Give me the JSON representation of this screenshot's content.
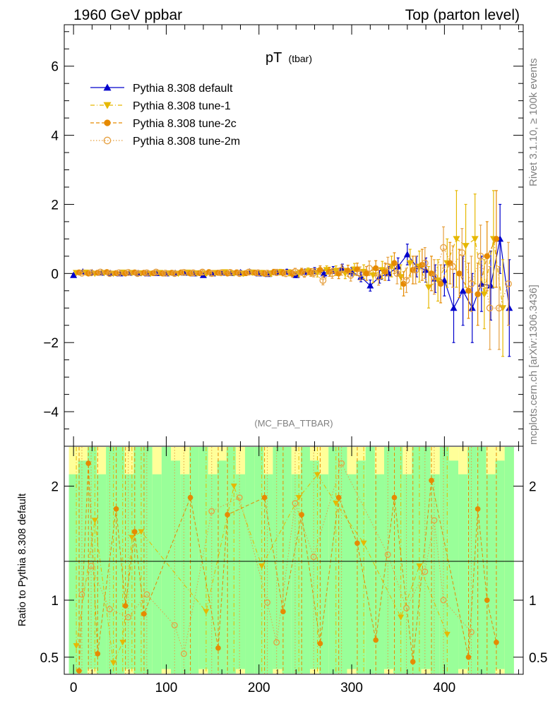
{
  "header": {
    "left": "1960 GeV ppbar",
    "right": "Top (parton level)"
  },
  "side_labels": {
    "rivet": "Rivet 3.1.10, ≥ 100k events",
    "mcplots": "mcplots.cern.ch [arXiv:1306.3436]"
  },
  "chart_data": [
    {
      "type": "line",
      "title": "pT",
      "title_sub": "(tbar)",
      "watermark": "(MC_FBA_TTBAR)",
      "ylim": [
        -5,
        7.2
      ],
      "xlim": [
        -10,
        485
      ],
      "yticks": [
        -4,
        -2,
        0,
        2,
        4,
        6
      ],
      "ytick_labels": [
        "−4",
        "−2",
        "0",
        "2",
        "4",
        "6"
      ],
      "legend_position": "top-left",
      "colors": {
        "default": "#0000cc",
        "tune-1": "#e6b800",
        "tune-2c": "#e68a00",
        "tune-2m": "#e6a040"
      },
      "series": [
        {
          "name": "Pythia 8.308 default",
          "marker": "triangle-up",
          "style": "solid",
          "x": [
            0,
            10,
            20,
            30,
            40,
            50,
            60,
            70,
            80,
            90,
            100,
            110,
            120,
            130,
            140,
            150,
            160,
            170,
            180,
            190,
            200,
            210,
            220,
            230,
            240,
            250,
            260,
            270,
            280,
            290,
            300,
            310,
            320,
            330,
            340,
            350,
            360,
            370,
            380,
            390,
            400,
            410,
            420,
            430,
            440,
            450,
            460,
            470
          ],
          "y": [
            -0.05,
            0.05,
            0.03,
            0.02,
            0.01,
            0.0,
            0.02,
            0.01,
            0.0,
            0.01,
            0.0,
            0.01,
            0.02,
            0.0,
            -0.05,
            0.0,
            0.02,
            0.01,
            0.03,
            0.05,
            0.0,
            -0.02,
            0.03,
            0.05,
            -0.05,
            0.05,
            0.08,
            0.0,
            0.1,
            0.15,
            0.05,
            -0.1,
            -0.35,
            -0.1,
            0.0,
            0.2,
            0.55,
            0.2,
            0.1,
            -0.15,
            -0.2,
            -1.0,
            -0.5,
            -1.0,
            -0.3,
            -0.35,
            1.0,
            -1.0
          ],
          "err": [
            0.04,
            0.04,
            0.04,
            0.04,
            0.04,
            0.04,
            0.04,
            0.04,
            0.04,
            0.04,
            0.04,
            0.04,
            0.05,
            0.05,
            0.05,
            0.05,
            0.05,
            0.05,
            0.06,
            0.06,
            0.06,
            0.06,
            0.07,
            0.07,
            0.07,
            0.08,
            0.09,
            0.1,
            0.1,
            0.12,
            0.12,
            0.14,
            0.16,
            0.18,
            0.2,
            0.25,
            0.3,
            0.3,
            0.35,
            0.4,
            0.45,
            1.0,
            1.0,
            1.0,
            0.8,
            1.0,
            1.0,
            1.4
          ]
        },
        {
          "name": "Pythia 8.308 tune-1",
          "marker": "triangle-down",
          "style": "dashdot",
          "x": [
            3,
            13,
            23,
            33,
            43,
            53,
            63,
            73,
            83,
            93,
            103,
            113,
            123,
            133,
            143,
            153,
            163,
            173,
            183,
            193,
            203,
            213,
            223,
            233,
            243,
            253,
            263,
            273,
            283,
            293,
            303,
            313,
            323,
            333,
            343,
            353,
            363,
            373,
            383,
            393,
            403,
            413,
            423,
            433,
            443,
            453,
            463
          ],
          "y": [
            0.02,
            0.03,
            0.0,
            0.02,
            0.0,
            0.03,
            0.02,
            0.01,
            0.0,
            0.02,
            0.01,
            0.0,
            0.03,
            0.01,
            0.0,
            0.02,
            0.04,
            0.01,
            0.0,
            0.03,
            0.02,
            0.0,
            0.04,
            0.02,
            0.0,
            0.06,
            0.02,
            0.1,
            0.08,
            0.0,
            0.12,
            0.05,
            -0.05,
            0.1,
            0.2,
            -0.1,
            0.3,
            0.2,
            -0.4,
            -0.2,
            0.3,
            1.0,
            0.8,
            1.0,
            -0.6,
            1.0,
            -1.0
          ],
          "err": [
            0.04,
            0.04,
            0.04,
            0.04,
            0.04,
            0.04,
            0.04,
            0.05,
            0.05,
            0.05,
            0.05,
            0.05,
            0.05,
            0.05,
            0.06,
            0.06,
            0.06,
            0.06,
            0.07,
            0.07,
            0.07,
            0.08,
            0.08,
            0.09,
            0.1,
            0.1,
            0.12,
            0.12,
            0.14,
            0.15,
            0.17,
            0.2,
            0.22,
            0.25,
            0.3,
            0.35,
            0.4,
            0.45,
            0.6,
            0.6,
            0.7,
            1.4,
            1.2,
            1.3,
            1.0,
            1.4,
            1.4
          ]
        },
        {
          "name": "Pythia 8.308 tune-2c",
          "marker": "circle",
          "style": "dashed",
          "x": [
            6,
            16,
            26,
            36,
            46,
            56,
            66,
            76,
            86,
            96,
            106,
            116,
            126,
            136,
            146,
            156,
            166,
            176,
            186,
            196,
            206,
            216,
            226,
            236,
            246,
            256,
            266,
            276,
            286,
            296,
            306,
            316,
            326,
            336,
            346,
            356,
            366,
            376,
            386,
            396,
            406,
            416,
            426,
            436,
            446,
            456
          ],
          "y": [
            0.03,
            0.0,
            0.02,
            0.04,
            0.01,
            0.0,
            0.03,
            0.02,
            0.01,
            0.0,
            0.02,
            0.03,
            0.0,
            0.01,
            0.04,
            0.02,
            0.0,
            0.03,
            0.01,
            0.02,
            0.0,
            0.04,
            0.02,
            0.0,
            0.05,
            0.03,
            0.1,
            0.05,
            0.0,
            0.08,
            0.12,
            0.0,
            0.15,
            0.05,
            0.3,
            -0.3,
            0.1,
            0.25,
            0.0,
            -0.3,
            0.3,
            0.0,
            -0.5,
            -0.6,
            0.5,
            1.0
          ],
          "err": [
            0.04,
            0.04,
            0.04,
            0.04,
            0.04,
            0.04,
            0.05,
            0.05,
            0.05,
            0.05,
            0.05,
            0.05,
            0.05,
            0.06,
            0.06,
            0.06,
            0.06,
            0.07,
            0.07,
            0.07,
            0.08,
            0.08,
            0.09,
            0.1,
            0.1,
            0.11,
            0.12,
            0.13,
            0.15,
            0.16,
            0.18,
            0.2,
            0.22,
            0.25,
            0.3,
            0.35,
            0.4,
            0.45,
            0.5,
            0.55,
            0.6,
            0.7,
            0.8,
            0.9,
            1.0,
            1.4
          ]
        },
        {
          "name": "Pythia 8.308 tune-2m",
          "marker": "circle-open",
          "style": "dotted",
          "x": [
            9,
            19,
            29,
            39,
            49,
            59,
            69,
            79,
            89,
            99,
            109,
            119,
            129,
            139,
            149,
            159,
            169,
            179,
            189,
            199,
            209,
            219,
            229,
            239,
            249,
            259,
            269,
            279,
            289,
            299,
            309,
            319,
            329,
            339,
            349,
            359,
            369,
            379,
            389,
            399,
            409,
            419,
            429,
            439,
            449,
            459,
            469
          ],
          "y": [
            0.01,
            0.02,
            0.04,
            0.0,
            0.02,
            0.03,
            0.0,
            0.02,
            0.04,
            0.01,
            0.0,
            0.03,
            0.02,
            0.04,
            0.0,
            0.02,
            0.03,
            0.0,
            0.04,
            0.02,
            0.01,
            0.03,
            0.0,
            0.05,
            0.0,
            0.02,
            -0.2,
            0.0,
            0.1,
            -0.05,
            0.0,
            0.15,
            -0.1,
            0.2,
            0.0,
            -0.2,
            0.1,
            0.3,
            -0.1,
            0.75,
            0.2,
            0.6,
            -0.3,
            0.5,
            -1.0,
            -1.0,
            -0.3
          ],
          "err": [
            0.04,
            0.04,
            0.04,
            0.04,
            0.04,
            0.04,
            0.05,
            0.05,
            0.05,
            0.05,
            0.05,
            0.05,
            0.06,
            0.06,
            0.06,
            0.06,
            0.07,
            0.07,
            0.07,
            0.08,
            0.08,
            0.09,
            0.09,
            0.1,
            0.11,
            0.12,
            0.13,
            0.14,
            0.15,
            0.17,
            0.19,
            0.21,
            0.24,
            0.27,
            0.3,
            0.35,
            0.4,
            0.45,
            0.5,
            0.6,
            0.6,
            0.7,
            0.8,
            0.9,
            1.2,
            1.2,
            1.2
          ]
        }
      ]
    },
    {
      "type": "scatter",
      "ylabel": "Ratio to Pythia 8.308 default",
      "ylim": [
        0.35,
        2.35
      ],
      "xlim": [
        -10,
        485
      ],
      "yticks": [
        0.5,
        1,
        2
      ],
      "ytick_labels": [
        "0.5",
        "1",
        "2"
      ],
      "xticks": [
        0,
        100,
        200,
        300,
        400
      ],
      "xtick_labels": [
        "0",
        "100",
        "200",
        "300",
        "400"
      ],
      "reference_line": 1,
      "band_colors": {
        "outer": "#ffff99",
        "inner": "#99ff99"
      },
      "series": [
        {
          "name": "Pythia 8.308 tune-1",
          "x": [
            3,
            23,
            43,
            53,
            63,
            73,
            143,
            173,
            203,
            243,
            263,
            283,
            313,
            353,
            373,
            403
          ],
          "y": [
            0.6,
            1.7,
            0.45,
            0.63,
            1.55,
            1.6,
            0.9,
            2.0,
            1.3,
            1.9,
            2.1,
            1.85,
            1.5,
            0.85,
            1.3,
            0.7
          ]
        },
        {
          "name": "Pythia 8.308 tune-2c",
          "x": [
            6,
            16,
            26,
            46,
            56,
            66,
            76,
            126,
            156,
            166,
            206,
            226,
            246,
            266,
            286,
            306,
            326,
            346,
            366,
            386,
            426,
            436,
            446,
            456
          ],
          "y": [
            0.38,
            2.2,
            0.53,
            1.8,
            0.95,
            1.6,
            0.88,
            1.9,
            0.58,
            1.75,
            1.9,
            0.9,
            1.75,
            0.62,
            1.9,
            1.5,
            0.65,
            1.9,
            0.46,
            2.05,
            0.5,
            1.8,
            1.0,
            0.63
          ]
        },
        {
          "name": "Pythia 8.308 tune-2m",
          "x": [
            9,
            19,
            39,
            59,
            79,
            109,
            119,
            149,
            179,
            209,
            219,
            239,
            259,
            289,
            339,
            359,
            379,
            389,
            399,
            429
          ],
          "y": [
            1.05,
            1.3,
            0.92,
            0.85,
            1.05,
            0.78,
            0.53,
            1.78,
            1.9,
            0.98,
            0.63,
            1.85,
            1.38,
            2.2,
            1.4,
            0.93,
            1.25,
            1.7,
            1.0,
            0.72
          ]
        }
      ]
    }
  ]
}
